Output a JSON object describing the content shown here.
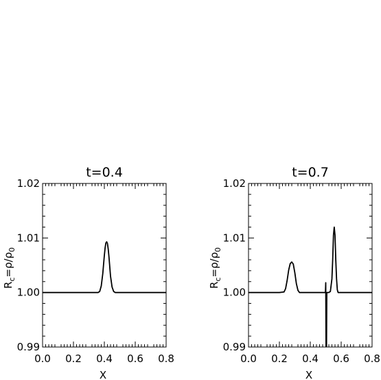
{
  "chart_data": [
    {
      "type": "line",
      "title": "t=0.4",
      "xlabel": "X",
      "ylabel_main": "R",
      "ylabel_sub": "c",
      "ylabel_rest": "=ρ/ρ",
      "ylabel_rest_sub": "0",
      "xlim": [
        0.0,
        0.8
      ],
      "ylim": [
        0.99,
        1.02
      ],
      "xticks": [
        0.0,
        0.2,
        0.4,
        0.6,
        0.8
      ],
      "xtick_labels": [
        "0.0",
        "0.2",
        "0.4",
        "0.6",
        "0.8"
      ],
      "yticks": [
        0.99,
        1.0,
        1.01,
        1.02
      ],
      "ytick_labels": [
        "0.99",
        "1.00",
        "1.01",
        "1.02"
      ],
      "series": [
        {
          "x": [
            0.0,
            0.3,
            0.36,
            0.37,
            0.38,
            0.39,
            0.4,
            0.405,
            0.41,
            0.415,
            0.42,
            0.425,
            0.43,
            0.44,
            0.45,
            0.46,
            0.47,
            0.5,
            0.8
          ],
          "y": [
            1.0,
            1.0,
            1.0,
            1.0002,
            1.0012,
            1.0035,
            1.0068,
            1.0082,
            1.0091,
            1.0093,
            1.009,
            1.008,
            1.0065,
            1.003,
            1.001,
            1.0002,
            1.0,
            1.0,
            1.0
          ]
        }
      ]
    },
    {
      "type": "line",
      "title": "t=0.7",
      "xlabel": "X",
      "ylabel_main": "R",
      "ylabel_sub": "c",
      "ylabel_rest": "=ρ/ρ",
      "ylabel_rest_sub": "0",
      "xlim": [
        0.0,
        0.8
      ],
      "ylim": [
        0.99,
        1.02
      ],
      "xticks": [
        0.0,
        0.2,
        0.4,
        0.6,
        0.8
      ],
      "xtick_labels": [
        "0.0",
        "0.2",
        "0.4",
        "0.6",
        "0.8"
      ],
      "yticks": [
        0.99,
        1.0,
        1.01,
        1.02
      ],
      "ytick_labels": [
        "0.99",
        "1.00",
        "1.01",
        "1.02"
      ],
      "series": [
        {
          "x": [
            0.0,
            0.2,
            0.23,
            0.24,
            0.25,
            0.26,
            0.27,
            0.28,
            0.29,
            0.3,
            0.31,
            0.32,
            0.33,
            0.35,
            0.48,
            0.498,
            0.5,
            0.502,
            0.505,
            0.507,
            0.51,
            0.52,
            0.53,
            0.54,
            0.545,
            0.55,
            0.555,
            0.56,
            0.565,
            0.57,
            0.575,
            0.58,
            0.6,
            0.8
          ],
          "y": [
            1.0,
            1.0,
            1.0001,
            1.0007,
            1.0022,
            1.0041,
            1.0053,
            1.0056,
            1.0052,
            1.0036,
            1.0016,
            1.0004,
            1.0,
            1.0,
            1.0,
            1.0,
            1.0018,
            0.99,
            0.99,
            1.0,
            1.0,
            1.0,
            1.0002,
            1.0025,
            1.006,
            1.0105,
            1.012,
            1.0105,
            1.006,
            1.0025,
            1.0005,
            1.0,
            1.0,
            1.0
          ]
        }
      ]
    }
  ]
}
